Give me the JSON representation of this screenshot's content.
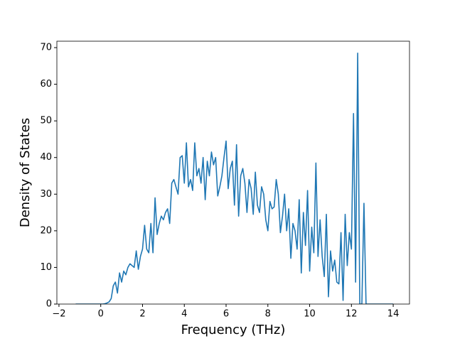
{
  "chart_data": {
    "type": "line",
    "x_label": "Frequency (THz)",
    "y_label": "Density of States",
    "x": [
      -1.2,
      -1.1,
      -1.0,
      -0.9,
      -0.8,
      -0.7,
      -0.6,
      -0.5,
      -0.4,
      -0.3,
      -0.2,
      -0.1,
      0.0,
      0.1,
      0.2,
      0.3,
      0.4,
      0.5,
      0.6,
      0.7,
      0.8,
      0.9,
      1.0,
      1.1,
      1.2,
      1.3,
      1.4,
      1.5,
      1.6,
      1.7,
      1.8,
      1.9,
      2.0,
      2.1,
      2.2,
      2.3,
      2.4,
      2.5,
      2.6,
      2.7,
      2.8,
      2.9,
      3.0,
      3.1,
      3.2,
      3.3,
      3.4,
      3.5,
      3.6,
      3.7,
      3.8,
      3.9,
      4.0,
      4.1,
      4.2,
      4.3,
      4.4,
      4.5,
      4.6,
      4.7,
      4.8,
      4.9,
      5.0,
      5.1,
      5.2,
      5.3,
      5.4,
      5.5,
      5.6,
      5.7,
      5.8,
      5.9,
      6.0,
      6.1,
      6.2,
      6.3,
      6.4,
      6.5,
      6.6,
      6.7,
      6.8,
      6.9,
      7.0,
      7.1,
      7.2,
      7.3,
      7.4,
      7.5,
      7.6,
      7.7,
      7.8,
      7.9,
      8.0,
      8.1,
      8.2,
      8.3,
      8.4,
      8.5,
      8.6,
      8.7,
      8.8,
      8.9,
      9.0,
      9.1,
      9.2,
      9.3,
      9.4,
      9.5,
      9.6,
      9.7,
      9.8,
      9.9,
      10.0,
      10.1,
      10.2,
      10.3,
      10.4,
      10.5,
      10.6,
      10.7,
      10.8,
      10.9,
      11.0,
      11.1,
      11.2,
      11.3,
      11.4,
      11.5,
      11.6,
      11.7,
      11.8,
      11.9,
      12.0,
      12.1,
      12.2,
      12.3,
      12.4,
      12.5,
      12.6,
      12.7,
      12.8,
      12.9,
      13.0,
      13.1,
      13.2,
      13.3,
      13.4,
      13.5,
      13.6,
      13.7,
      13.8,
      13.9,
      14.0
    ],
    "series": [
      {
        "color": "#1f77b4",
        "values": [
          0,
          0,
          0,
          0,
          0,
          0,
          0,
          0,
          0,
          0,
          0,
          0,
          0,
          0,
          0.1,
          0.3,
          0.6,
          1.5,
          5,
          6,
          3,
          8.5,
          6,
          9,
          8,
          10,
          11,
          10.5,
          10,
          14.5,
          9.5,
          13,
          15,
          21.5,
          15,
          14,
          22,
          14,
          29,
          19,
          22,
          24,
          23,
          25,
          26,
          22,
          33,
          34,
          32,
          30,
          40,
          40.5,
          33,
          44,
          32,
          34,
          31,
          44,
          35,
          37,
          33,
          40,
          28.5,
          39,
          35,
          41.5,
          38,
          40,
          29.5,
          32,
          35,
          40,
          44.5,
          31.5,
          37,
          39,
          27,
          43.5,
          24,
          35,
          37,
          33,
          25,
          34,
          31.5,
          24.5,
          36,
          27,
          25,
          32,
          30,
          23,
          20,
          28,
          26,
          26.5,
          34,
          30,
          19.5,
          24,
          30,
          20,
          26,
          12.5,
          22,
          20,
          15,
          28.5,
          8.5,
          25,
          16,
          31,
          9,
          21,
          14,
          38.5,
          13,
          23,
          13,
          7.5,
          24.5,
          2,
          14.5,
          9,
          12,
          6,
          5.5,
          19.5,
          1,
          24.5,
          10.5,
          19.5,
          15,
          52,
          6,
          68.5,
          0,
          0,
          27.5,
          0,
          0,
          0,
          0,
          0,
          0,
          0,
          0,
          0,
          0,
          0,
          0,
          0,
          0
        ]
      }
    ],
    "xlim": [
      -2.1,
      14.78
    ],
    "ylim": [
      0,
      71.75
    ],
    "xticks": [
      {
        "value": -2,
        "label": "−2"
      },
      0,
      2,
      4,
      6,
      8,
      10,
      12,
      14
    ],
    "yticks": [
      0,
      10,
      20,
      30,
      40,
      50,
      60,
      70
    ]
  }
}
